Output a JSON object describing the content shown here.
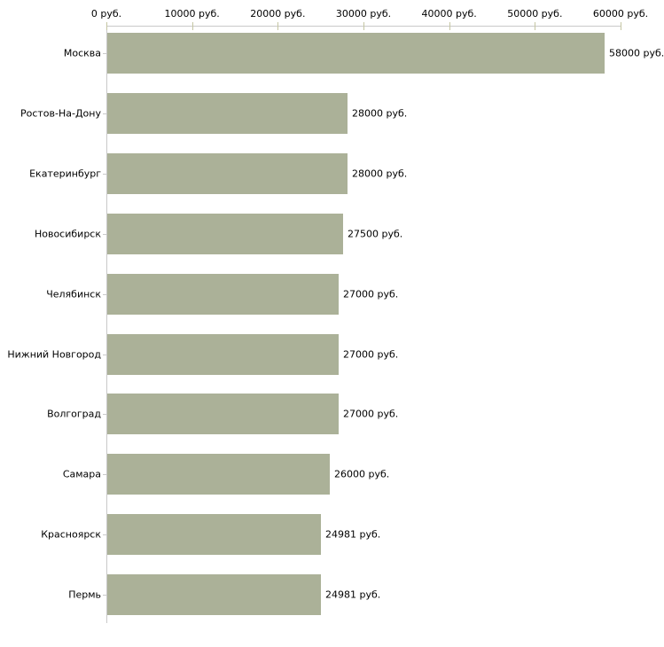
{
  "chart_data": {
    "type": "bar",
    "orientation": "horizontal",
    "title": "",
    "xlabel": "",
    "ylabel": "",
    "unit": "руб.",
    "xlim": [
      0,
      60000
    ],
    "grid": false,
    "legend": false,
    "categories": [
      "Москва",
      "Ростов-На-Дону",
      "Екатеринбург",
      "Новосибирск",
      "Челябинск",
      "Нижний Новгород",
      "Волгоград",
      "Самара",
      "Красноярск",
      "Пермь"
    ],
    "values": [
      58000,
      28000,
      28000,
      27500,
      27000,
      27000,
      27000,
      26000,
      24981,
      24981
    ],
    "value_labels": [
      "58000 руб.",
      "28000 руб.",
      "28000 руб.",
      "27500 руб.",
      "27000 руб.",
      "27000 руб.",
      "27000 руб.",
      "26000 руб.",
      "24981 руб.",
      "24981 руб."
    ],
    "x_ticks": [
      0,
      10000,
      20000,
      30000,
      40000,
      50000,
      60000
    ],
    "x_tick_labels": [
      "0 руб.",
      "10000 руб.",
      "20000 руб.",
      "30000 руб.",
      "40000 руб.",
      "50000 руб.",
      "60000 руб."
    ],
    "colors": {
      "bar_fill": "#ABB198",
      "axis_line": "#C9C9C9",
      "axis_tick": "#C5C6A3",
      "text": "#000000",
      "background": "#FFFFFF"
    }
  }
}
